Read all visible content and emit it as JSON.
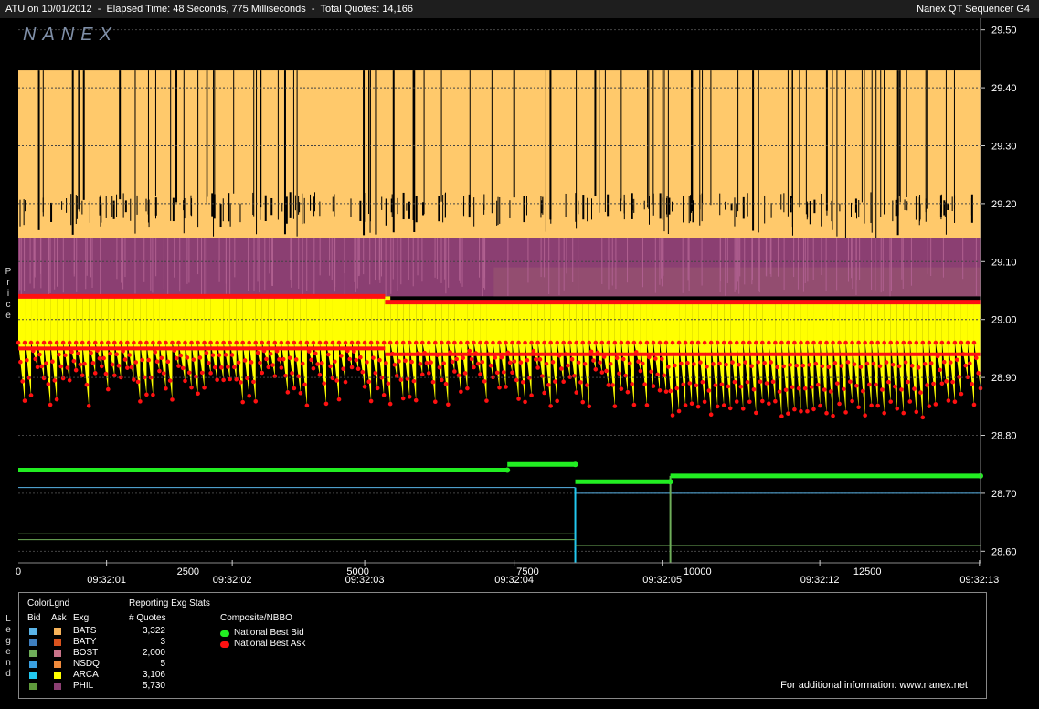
{
  "header": {
    "title": "ATU on 10/01/2012  -  Elapsed Time: 48 Seconds, 775 Milliseconds  -  Total Quotes: 14,166",
    "app_name": "Nanex QT Sequencer G4"
  },
  "watermark": "NANEX",
  "colors": {
    "bg": "#000000",
    "ask_fill": "#ffc96b",
    "phil_ask": "#8b3f72",
    "arca_bid": "#ffff00",
    "nbbo_bid": "#22ee22",
    "nbbo_ask": "#ff1111",
    "grid": "#444444"
  },
  "chart_data": {
    "type": "line",
    "ylabel": "Price",
    "y_ticks": [
      "29.50",
      "29.40",
      "29.30",
      "29.20",
      "29.10",
      "29.00",
      "28.90",
      "28.80",
      "28.70",
      "28.60"
    ],
    "ylim": [
      28.58,
      29.52
    ],
    "xlim": [
      0,
      14166
    ],
    "x_ticks": [
      "0",
      "2500",
      "5000",
      "7500",
      "10000",
      "12500"
    ],
    "time_ticks": [
      {
        "q": 1300,
        "label": "09:32:01"
      },
      {
        "q": 3150,
        "label": "09:32:02"
      },
      {
        "q": 5100,
        "label": "09:32:03"
      },
      {
        "q": 7300,
        "label": "09:32:04"
      },
      {
        "q": 9480,
        "label": "09:32:05"
      },
      {
        "q": 11800,
        "label": "09:32:12"
      },
      {
        "q": 14150,
        "label": "09:32:13"
      }
    ],
    "series": [
      {
        "name": "National Best Bid",
        "segments": [
          [
            0,
            7200,
            28.74
          ],
          [
            7200,
            8200,
            28.75
          ],
          [
            8200,
            9600,
            28.72
          ],
          [
            9600,
            14166,
            28.73
          ]
        ]
      },
      {
        "name": "National Best Ask",
        "segments": [
          [
            0,
            5400,
            29.04
          ],
          [
            5400,
            14166,
            29.03
          ]
        ]
      },
      {
        "name": "ARCA Bid",
        "ref_levels": [
          28.95,
          28.94
        ],
        "low_range": [
          28.83,
          28.92
        ]
      },
      {
        "name": "PHIL Ask",
        "ref_levels": [
          29.14,
          29.09
        ]
      },
      {
        "name": "Ask",
        "ref_levels": [
          29.43
        ]
      },
      {
        "name": "BATS Bid",
        "segments": [
          [
            0,
            8200,
            28.71
          ],
          [
            8200,
            14166,
            28.7
          ]
        ]
      },
      {
        "name": "BOST Bid",
        "segments": [
          [
            0,
            8200,
            28.63
          ],
          [
            0,
            8200,
            28.62
          ],
          [
            8200,
            14166,
            28.61
          ]
        ]
      }
    ]
  },
  "legend": {
    "side_label": "Legend",
    "color_legend_title": "ColorLgnd",
    "stats_title": "Reporting Exg Stats",
    "col_bid": "Bid",
    "col_ask": "Ask",
    "col_exg": "Exg",
    "col_quotes": "# Quotes",
    "composite_title": "Composite/NBBO",
    "exchanges": [
      {
        "name": "BATS",
        "quotes": "3,322",
        "bid_color": "#5ab4e8",
        "ask_color": "#f7b35a"
      },
      {
        "name": "BATY",
        "quotes": "3",
        "bid_color": "#3e7fbf",
        "ask_color": "#d9531e"
      },
      {
        "name": "BOST",
        "quotes": "2,000",
        "bid_color": "#6fae5a",
        "ask_color": "#c9738a"
      },
      {
        "name": "NSDQ",
        "quotes": "5",
        "bid_color": "#3aa0e0",
        "ask_color": "#f08a3c"
      },
      {
        "name": "ARCA",
        "quotes": "3,106",
        "bid_color": "#22c8f0",
        "ask_color": "#ffff00"
      },
      {
        "name": "PHIL",
        "quotes": "5,730",
        "bid_color": "#5f9a3c",
        "ask_color": "#8b3f72"
      }
    ],
    "nbbo": [
      {
        "label": "National Best Bid",
        "color": "#22ee22"
      },
      {
        "label": "National Best Ask",
        "color": "#ff1111"
      }
    ]
  },
  "footer": "For additional information: www.nanex.net"
}
